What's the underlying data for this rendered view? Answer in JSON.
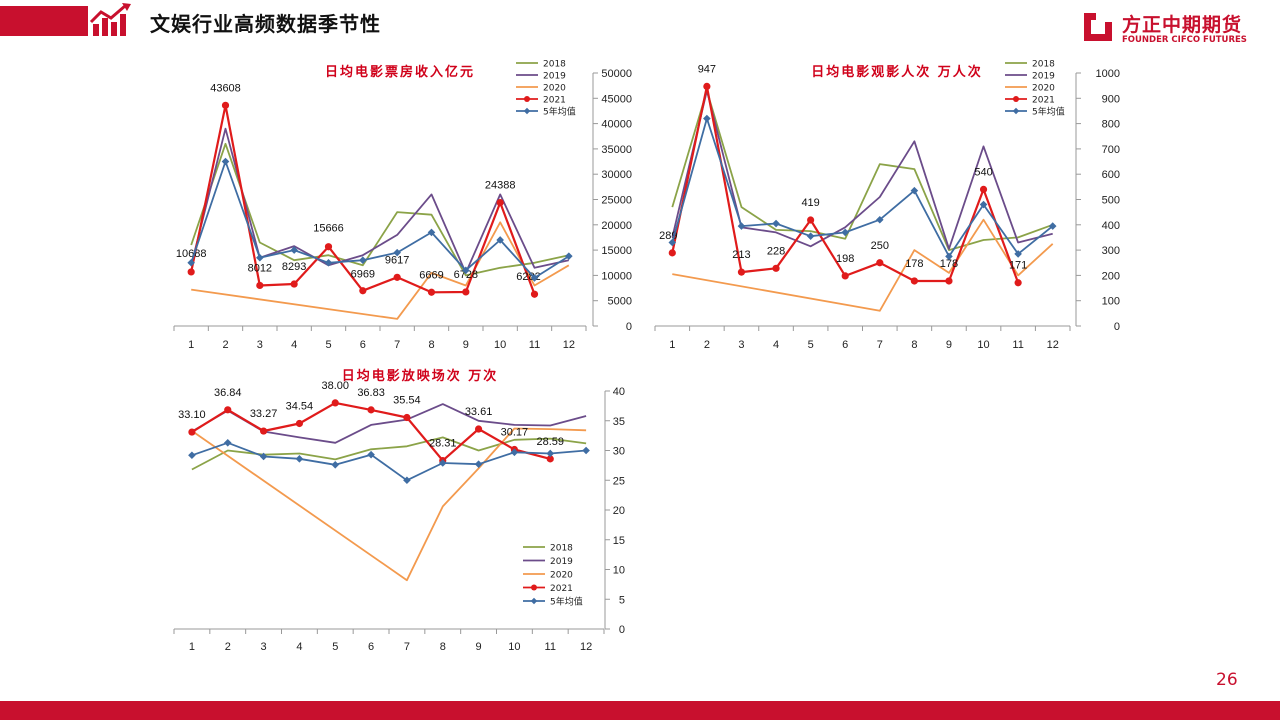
{
  "header": {
    "title": "文娱行业高频数据季节性"
  },
  "logo": {
    "cn": "方正中期期货",
    "en": "FOUNDER CIFCO FUTURES"
  },
  "page_number": "26",
  "colors": {
    "brand": "#c8102e",
    "s2018": "#8ba348",
    "s2019": "#6b4c8a",
    "s2020": "#f39a4e",
    "s2021": "#e01b1b",
    "avg": "#3f6da3"
  },
  "chart_data": [
    {
      "type": "line",
      "title": "日均电影票房收入亿元",
      "categories": [
        "1",
        "2",
        "3",
        "4",
        "5",
        "6",
        "7",
        "8",
        "9",
        "10",
        "11",
        "12"
      ],
      "ylim": [
        0,
        50000
      ],
      "yticks": [
        "0",
        "5000",
        "10000",
        "15000",
        "20000",
        "25000",
        "30000",
        "35000",
        "40000",
        "45000",
        "50000"
      ],
      "legend": "top-right",
      "series": [
        {
          "name": "2018",
          "values": [
            16000,
            36000,
            16500,
            13000,
            14000,
            12000,
            22500,
            22000,
            10000,
            11500,
            12500,
            14000
          ]
        },
        {
          "name": "2019",
          "values": [
            12000,
            39000,
            13500,
            15800,
            12000,
            14000,
            18000,
            26000,
            10500,
            26000,
            11500,
            13000
          ]
        },
        {
          "name": "2020",
          "values": [
            7200,
            null,
            null,
            null,
            null,
            null,
            1400,
            10500,
            8000,
            20500,
            8000,
            12000
          ]
        },
        {
          "name": "2021",
          "values": [
            10688,
            43608,
            8012,
            8293,
            15666,
            6969,
            9617,
            6669,
            6728,
            24388,
            6282,
            null
          ],
          "labels": [
            "10688",
            "43608",
            "8012",
            "8293",
            "15666",
            "6969",
            "9617",
            "6669",
            "6728",
            "24388",
            "6282",
            ""
          ]
        },
        {
          "name": "5年均值",
          "values": [
            12500,
            32500,
            13500,
            15000,
            12500,
            13000,
            14500,
            18500,
            11000,
            17000,
            9500,
            13800
          ]
        }
      ]
    },
    {
      "type": "line",
      "title": "日均电影观影人次 万人次",
      "categories": [
        "1",
        "2",
        "3",
        "4",
        "5",
        "6",
        "7",
        "8",
        "9",
        "10",
        "11",
        "12"
      ],
      "ylim": [
        0,
        1000
      ],
      "yticks": [
        "0",
        "100",
        "200",
        "300",
        "400",
        "500",
        "600",
        "700",
        "800",
        "900",
        "1000"
      ],
      "legend": "top-right",
      "series": [
        {
          "name": "2018",
          "values": [
            470,
            930,
            470,
            380,
            375,
            345,
            640,
            620,
            300,
            340,
            350,
            400
          ]
        },
        {
          "name": "2019",
          "values": [
            350,
            930,
            390,
            370,
            315,
            390,
            510,
            730,
            305,
            710,
            330,
            365
          ]
        },
        {
          "name": "2020",
          "values": [
            205,
            null,
            null,
            null,
            null,
            null,
            60,
            300,
            210,
            420,
            200,
            325
          ]
        },
        {
          "name": "2021",
          "values": [
            289,
            947,
            213,
            228,
            419,
            198,
            250,
            178,
            178,
            540,
            171,
            null
          ],
          "labels": [
            "289",
            "947",
            "213",
            "228",
            "419",
            "198",
            "250",
            "178",
            "178",
            "540",
            "171",
            ""
          ]
        },
        {
          "name": "5年均值",
          "values": [
            330,
            820,
            395,
            405,
            355,
            370,
            420,
            535,
            275,
            480,
            285,
            395
          ]
        }
      ]
    },
    {
      "type": "line",
      "title": "日均电影放映场次 万次",
      "categories": [
        "1",
        "2",
        "3",
        "4",
        "5",
        "6",
        "7",
        "8",
        "9",
        "10",
        "11",
        "12"
      ],
      "ylim": [
        0,
        40
      ],
      "yticks": [
        "0",
        "5",
        "10",
        "15",
        "20",
        "25",
        "30",
        "35",
        "40"
      ],
      "legend": "bottom-right",
      "series": [
        {
          "name": "2018",
          "values": [
            26.8,
            30.0,
            29.3,
            29.5,
            28.5,
            30.2,
            30.7,
            32.2,
            30.0,
            31.8,
            32.0,
            31.2
          ]
        },
        {
          "name": "2019",
          "values": [
            33.2,
            36.7,
            33.2,
            32.2,
            31.3,
            34.3,
            35.2,
            37.8,
            35.0,
            34.3,
            34.2,
            35.8
          ]
        },
        {
          "name": "2020",
          "values": [
            33.3,
            null,
            null,
            null,
            null,
            null,
            8.2,
            20.6,
            27.0,
            33.7,
            33.6,
            33.4
          ]
        },
        {
          "name": "2021",
          "values": [
            33.1,
            36.84,
            33.27,
            34.54,
            38.0,
            36.83,
            35.54,
            28.31,
            33.61,
            30.17,
            28.59,
            null
          ],
          "labels": [
            "33.10",
            "36.84",
            "33.27",
            "34.54",
            "38.00",
            "36.83",
            "35.54",
            "28.31",
            "33.61",
            "30.17",
            "28.59",
            ""
          ]
        },
        {
          "name": "5年均值",
          "values": [
            29.2,
            31.3,
            29.0,
            28.6,
            27.6,
            29.3,
            25.0,
            27.9,
            27.7,
            29.7,
            29.5,
            30.0
          ]
        }
      ]
    }
  ]
}
